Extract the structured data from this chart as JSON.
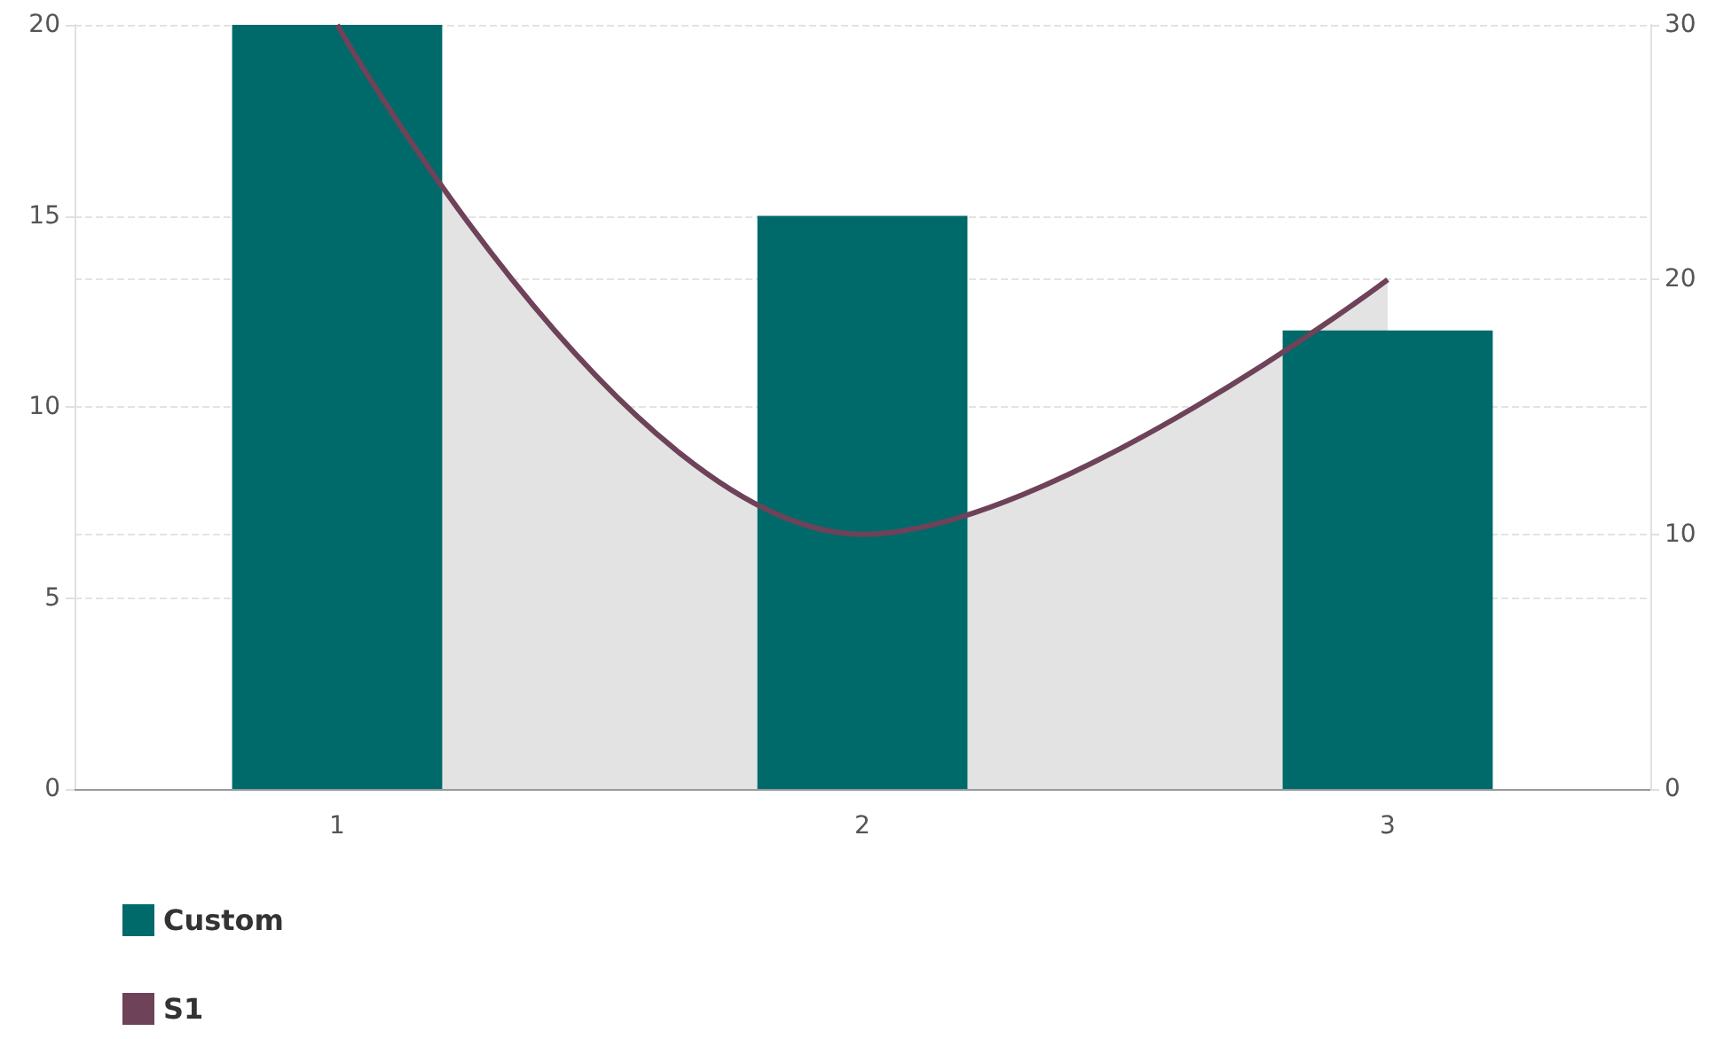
{
  "chart_data": {
    "type": "bar",
    "categories": [
      "1",
      "2",
      "3"
    ],
    "series": [
      {
        "name": "Custom",
        "color": "#006a6a",
        "values": [
          20,
          15,
          12
        ]
      },
      {
        "name": "S1",
        "type": "area",
        "axis": "y2",
        "color": "#6e4259",
        "values": [
          30,
          10,
          20
        ]
      }
    ],
    "ylim": [
      0,
      20
    ],
    "yticks": [
      0,
      5,
      10,
      15,
      20
    ],
    "y2lim": [
      0,
      30
    ],
    "y2ticks": [
      0,
      10,
      20,
      30
    ],
    "grid": "y",
    "legend": "bottom left",
    "marker": "none"
  }
}
